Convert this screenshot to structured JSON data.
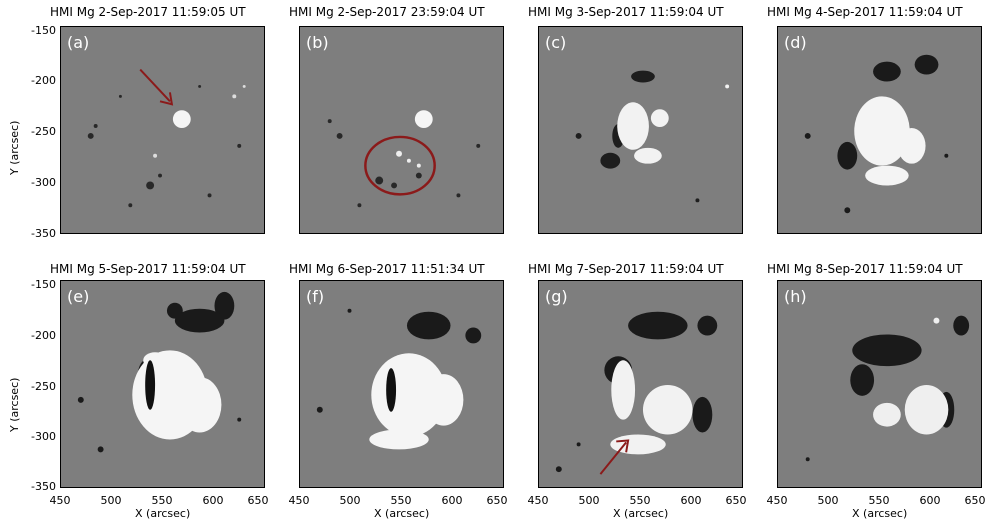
{
  "panels": [
    {
      "title": "HMI Mg 2-Sep-2017 11:59:05 UT",
      "label": "(a)"
    },
    {
      "title": "HMI Mg 2-Sep-2017 23:59:04 UT",
      "label": "(b)"
    },
    {
      "title": "HMI Mg 3-Sep-2017 11:59:04 UT",
      "label": "(c)"
    },
    {
      "title": "HMI Mg 4-Sep-2017 11:59:04 UT",
      "label": "(d)"
    },
    {
      "title": "HMI Mg 5-Sep-2017 11:59:04 UT",
      "label": "(e)"
    },
    {
      "title": "HMI Mg 6-Sep-2017 11:51:34 UT",
      "label": "(f)"
    },
    {
      "title": "HMI Mg 7-Sep-2017 11:59:04 UT",
      "label": "(g)"
    },
    {
      "title": "HMI Mg 8-Sep-2017 11:59:04 UT",
      "label": "(h)"
    }
  ],
  "axes": {
    "y_label": "Y (arcsec)",
    "x_label": "X (arcsec)",
    "y_ticks": [
      "-150",
      "-200",
      "-250",
      "-300",
      "-350"
    ],
    "x_ticks": [
      "450",
      "500",
      "550",
      "600",
      "650"
    ]
  },
  "colors": {
    "annotation": "#8b1a1a",
    "background_gray": "#7f7f7f"
  }
}
